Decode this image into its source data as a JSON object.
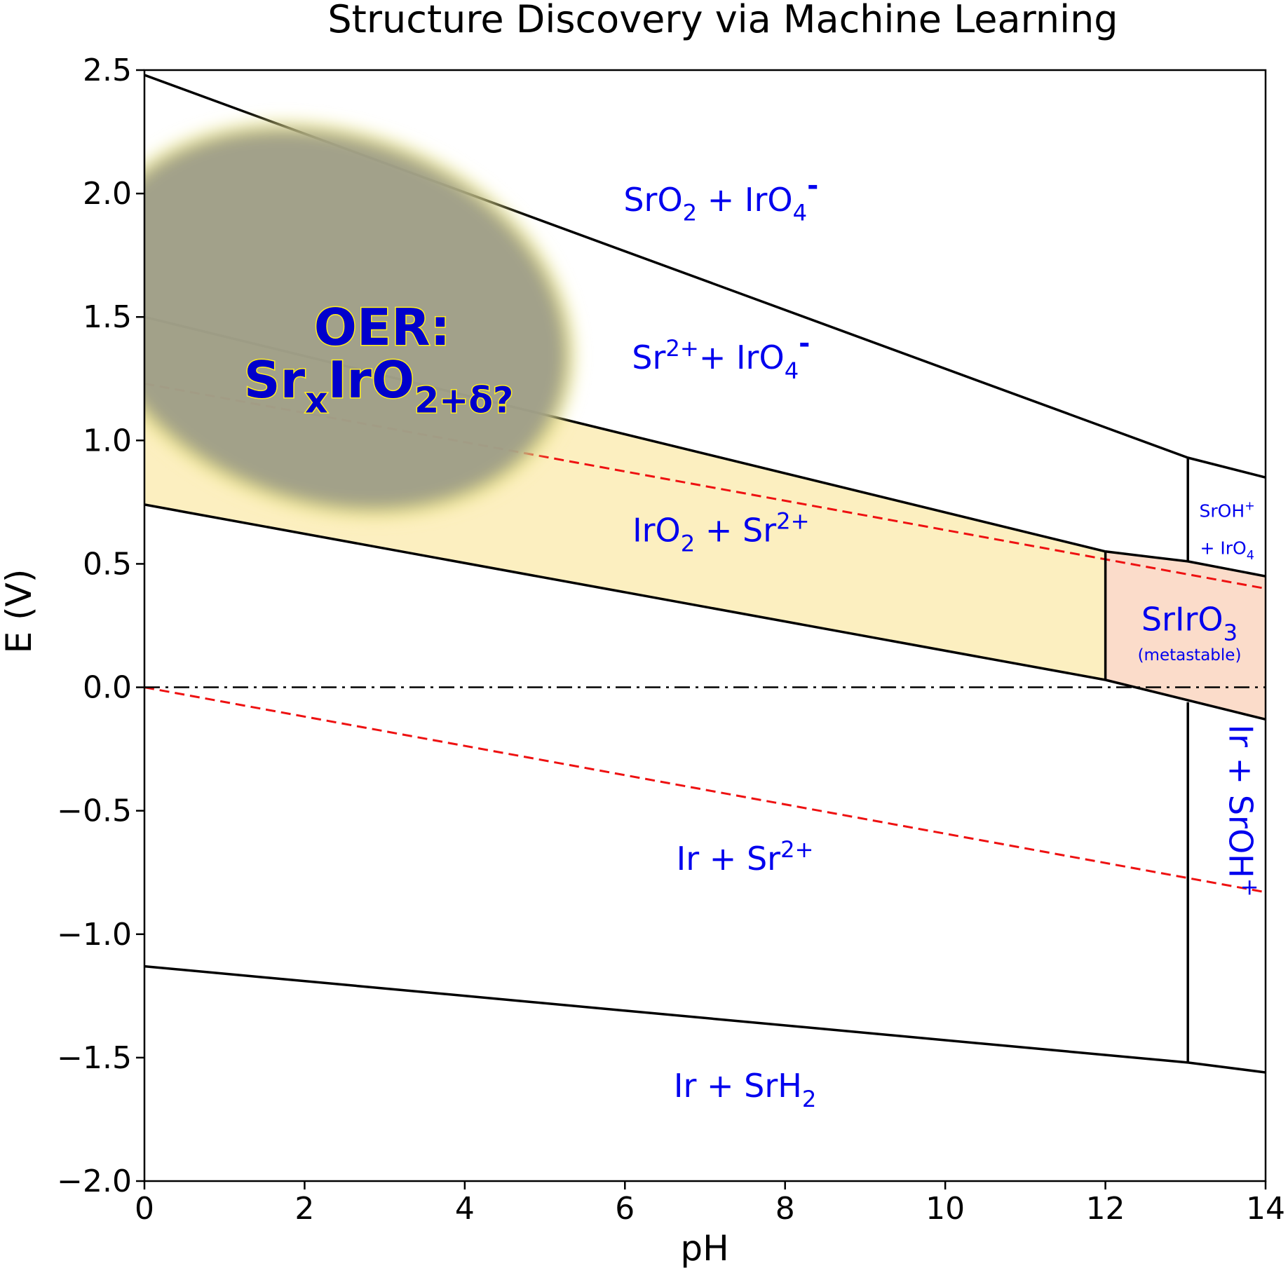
{
  "chart_data": {
    "type": "line",
    "title": "Structure Discovery via Machine Learning",
    "xlabel": "pH",
    "ylabel": "E (V)",
    "xlim": [
      0,
      14
    ],
    "ylim": [
      -2.0,
      2.5
    ],
    "x_ticks": [
      "0",
      "2",
      "4",
      "6",
      "8",
      "10",
      "12",
      "14"
    ],
    "y_ticks": [
      "2.5",
      "2.0",
      "1.5",
      "1.0",
      "0.5",
      "0.0",
      "−0.5",
      "−1.0",
      "−1.5",
      "−2.0"
    ],
    "x_tick_values": [
      0,
      2,
      4,
      6,
      8,
      10,
      12,
      14
    ],
    "y_tick_values": [
      2.5,
      2.0,
      1.5,
      1.0,
      0.5,
      0.0,
      -0.5,
      -1.0,
      -1.5,
      -2.0
    ],
    "grid": false,
    "colors": {
      "boundary": "#000000",
      "water_lines": "#ee1111",
      "label": "#0000ee",
      "iro2_region": "#fcefc0",
      "srIro3_region": "#fbdcca",
      "oer_blob": "#8c8c8c",
      "oer_text_fill": "#0000cc",
      "oer_text_stroke": "#ffee22"
    },
    "boundaries": [
      {
        "points": [
          [
            0,
            2.48
          ],
          [
            13.03,
            0.93
          ]
        ]
      },
      {
        "points": [
          [
            13.03,
            0.93
          ],
          [
            14,
            0.85
          ]
        ]
      },
      {
        "points": [
          [
            0,
            1.5
          ],
          [
            12.0,
            0.55
          ]
        ]
      },
      {
        "points": [
          [
            12.0,
            0.55
          ],
          [
            13.03,
            0.51
          ],
          [
            14,
            0.45
          ]
        ]
      },
      {
        "points": [
          [
            0,
            0.74
          ],
          [
            12.0,
            0.03
          ]
        ]
      },
      {
        "points": [
          [
            12.0,
            0.03
          ],
          [
            14,
            -0.13
          ]
        ]
      },
      {
        "points": [
          [
            12.0,
            0.55
          ],
          [
            12.0,
            0.03
          ]
        ]
      },
      {
        "points": [
          [
            13.03,
            0.93
          ],
          [
            13.03,
            0.51
          ]
        ]
      },
      {
        "points": [
          [
            13.03,
            -0.06
          ],
          [
            13.03,
            -1.52
          ]
        ]
      },
      {
        "points": [
          [
            0,
            -1.13
          ],
          [
            13.03,
            -1.52
          ]
        ]
      },
      {
        "points": [
          [
            13.03,
            -1.52
          ],
          [
            14,
            -1.56
          ]
        ]
      }
    ],
    "water_lines": [
      {
        "style": "dashed",
        "points": [
          [
            0,
            1.23
          ],
          [
            14,
            0.4
          ]
        ]
      },
      {
        "style": "dashed",
        "points": [
          [
            0,
            0.0
          ],
          [
            14,
            -0.83
          ]
        ]
      }
    ],
    "reference_line": {
      "style": "dashdot",
      "y": 0.0
    },
    "regions": [
      {
        "name": "IrO2 + Sr2+",
        "polygon": [
          [
            0,
            1.5
          ],
          [
            12.0,
            0.55
          ],
          [
            12.0,
            0.03
          ],
          [
            0,
            0.74
          ]
        ]
      },
      {
        "name": "SrIrO3",
        "polygon": [
          [
            12.0,
            0.55
          ],
          [
            13.03,
            0.51
          ],
          [
            14,
            0.45
          ],
          [
            14,
            -0.13
          ],
          [
            12.0,
            0.03
          ]
        ]
      }
    ],
    "oer_region": {
      "center": [
        2.3,
        1.49
      ],
      "radius": [
        3.1,
        0.75
      ],
      "rotation_deg": 20
    },
    "annotations": [
      {
        "id": "sro2-iro4",
        "x": 7.2,
        "y": 1.93,
        "parts": [
          [
            "SrO",
            "n"
          ],
          [
            "2",
            "sub"
          ],
          [
            " + IrO",
            "n"
          ],
          [
            "4",
            "sub"
          ],
          [
            "-",
            "supb"
          ]
        ]
      },
      {
        "id": "sr-iro4",
        "x": 7.2,
        "y": 1.29,
        "parts": [
          [
            "Sr",
            "n"
          ],
          [
            "2+",
            "sup"
          ],
          [
            "+ IrO",
            "n"
          ],
          [
            "4",
            "sub"
          ],
          [
            "-",
            "supb"
          ]
        ]
      },
      {
        "id": "iro2-sr",
        "x": 7.2,
        "y": 0.59,
        "parts": [
          [
            "IrO",
            "n"
          ],
          [
            "2",
            "sub"
          ],
          [
            " + Sr",
            "n"
          ],
          [
            "2+",
            "sup"
          ]
        ]
      },
      {
        "id": "ir-sr",
        "x": 7.5,
        "y": -0.74,
        "parts": [
          [
            "Ir + Sr",
            "n"
          ],
          [
            "2+",
            "sup"
          ]
        ]
      },
      {
        "id": "ir-srh2",
        "x": 7.5,
        "y": -1.66,
        "parts": [
          [
            "Ir + SrH",
            "n"
          ],
          [
            "2",
            "sub"
          ]
        ]
      },
      {
        "id": "sriro3",
        "x": 13.05,
        "y": 0.23,
        "parts": [
          [
            "SrIrO",
            "n"
          ],
          [
            "3",
            "sub"
          ]
        ]
      },
      {
        "id": "metastable",
        "x": 13.05,
        "y": 0.11,
        "parts": [
          [
            "(metastable)",
            "n"
          ]
        ]
      },
      {
        "id": "sroh-top",
        "x": 13.52,
        "y": 0.69,
        "parts": [
          [
            "SrOH",
            "n"
          ],
          [
            "+",
            "sup"
          ]
        ]
      },
      {
        "id": "iro4-small",
        "x": 13.52,
        "y": 0.54,
        "parts": [
          [
            "+ IrO",
            "n"
          ],
          [
            "4",
            "sub"
          ]
        ]
      },
      {
        "id": "ir-sroh",
        "x": 13.55,
        "y": -0.5,
        "rotate": 90,
        "parts": [
          [
            "Ir + SrOH",
            "n"
          ],
          [
            "+",
            "sup"
          ]
        ]
      }
    ],
    "oer_label": {
      "line1": "OER:",
      "line2_parts": [
        [
          "Sr",
          "n"
        ],
        [
          "x",
          "sub"
        ],
        [
          "IrO",
          "n"
        ],
        [
          "2+δ?",
          "sub"
        ]
      ]
    }
  }
}
